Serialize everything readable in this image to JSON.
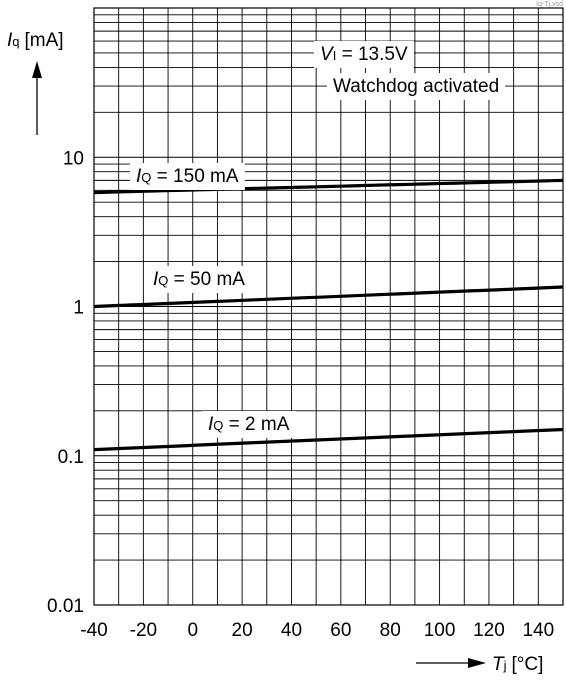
{
  "chart_data": {
    "type": "line",
    "file_tag": "Iq-Tj.vsd",
    "y_axis": {
      "symbol": "I",
      "subscript": "q",
      "unit": "[mA]",
      "scale": "log",
      "ylim": [
        0.01,
        100
      ],
      "tick_values": [
        0.01,
        0.1,
        1,
        10
      ],
      "tick_labels": [
        "0.01",
        "0.1",
        "1",
        "10"
      ]
    },
    "x_axis": {
      "symbol": "T",
      "subscript": "j",
      "unit": "[°C]",
      "xlim": [
        -40,
        150
      ],
      "tick_values": [
        -40,
        -20,
        0,
        20,
        40,
        60,
        80,
        100,
        120,
        140
      ],
      "tick_labels": [
        "-40",
        "-20",
        "0",
        "20",
        "40",
        "60",
        "80",
        "100",
        "120",
        "140"
      ],
      "grid_step": 10
    },
    "grid": true,
    "conditions": {
      "vi_symbol": "V",
      "vi_subscript": "I",
      "vi_value": " = 13.5V",
      "watchdog": "Watchdog activated"
    },
    "series": [
      {
        "name_symbol": "I",
        "name_subscript": "Q",
        "name_value": " = 150 mA",
        "x": [
          -40,
          150
        ],
        "y": [
          5.8,
          7.0
        ]
      },
      {
        "name_symbol": "I",
        "name_subscript": "Q",
        "name_value": " = 50 mA",
        "x": [
          -40,
          150
        ],
        "y": [
          1.0,
          1.35
        ]
      },
      {
        "name_symbol": "I",
        "name_subscript": "Q",
        "name_value": " = 2 mA",
        "x": [
          -40,
          150
        ],
        "y": [
          0.11,
          0.15
        ]
      }
    ]
  }
}
